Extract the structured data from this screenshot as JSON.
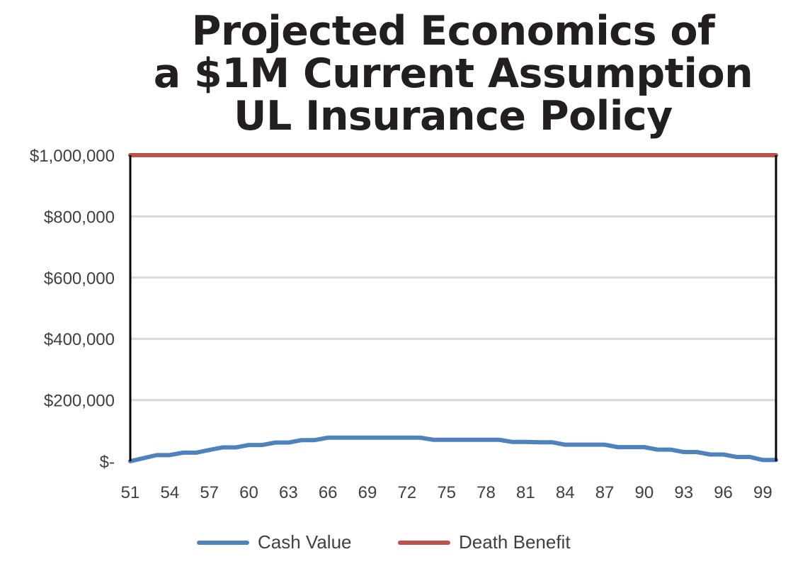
{
  "chart_data": {
    "type": "line",
    "title": [
      "Projected Economics of",
      "a $1M Current Assumption",
      "UL Insurance Policy"
    ],
    "xlabel": "",
    "ylabel": "",
    "x": [
      51,
      52,
      53,
      54,
      55,
      56,
      57,
      58,
      59,
      60,
      61,
      62,
      63,
      64,
      65,
      66,
      67,
      68,
      69,
      70,
      71,
      72,
      73,
      74,
      75,
      76,
      77,
      78,
      79,
      80,
      81,
      82,
      83,
      84,
      85,
      86,
      87,
      88,
      89,
      90,
      91,
      92,
      93,
      94,
      95,
      96,
      97,
      98,
      99,
      100
    ],
    "x_tick_labels": [
      "51",
      "54",
      "57",
      "60",
      "63",
      "66",
      "69",
      "72",
      "75",
      "78",
      "81",
      "84",
      "87",
      "90",
      "93",
      "96",
      "99"
    ],
    "xlim": [
      51,
      100
    ],
    "ylim": [
      0,
      1000000
    ],
    "y_tick_values": [
      0,
      200000,
      400000,
      600000,
      800000,
      1000000
    ],
    "y_tick_labels": [
      "$-",
      "$200,000",
      "$400,000",
      "$600,000",
      "$800,000",
      "$1,000,000"
    ],
    "grid": true,
    "legend_position": "bottom",
    "series": [
      {
        "name": "Cash Value",
        "color": "#4f81bd",
        "values": [
          0,
          10000,
          20000,
          20000,
          28000,
          28000,
          37000,
          45000,
          45000,
          53000,
          53000,
          61000,
          61000,
          69000,
          69000,
          77000,
          77000,
          77000,
          77000,
          77000,
          77000,
          77000,
          77000,
          70000,
          70000,
          70000,
          70000,
          70000,
          70000,
          63000,
          63000,
          62000,
          62000,
          54000,
          54000,
          54000,
          54000,
          46000,
          46000,
          46000,
          38000,
          38000,
          30000,
          30000,
          22000,
          22000,
          14000,
          14000,
          4000,
          4000
        ]
      },
      {
        "name": "Death Benefit",
        "color": "#c0504d",
        "values": [
          1000000,
          1000000,
          1000000,
          1000000,
          1000000,
          1000000,
          1000000,
          1000000,
          1000000,
          1000000,
          1000000,
          1000000,
          1000000,
          1000000,
          1000000,
          1000000,
          1000000,
          1000000,
          1000000,
          1000000,
          1000000,
          1000000,
          1000000,
          1000000,
          1000000,
          1000000,
          1000000,
          1000000,
          1000000,
          1000000,
          1000000,
          1000000,
          1000000,
          1000000,
          1000000,
          1000000,
          1000000,
          1000000,
          1000000,
          1000000,
          1000000,
          1000000,
          1000000,
          1000000,
          1000000,
          1000000,
          1000000,
          1000000,
          1000000,
          1000000
        ]
      }
    ]
  }
}
